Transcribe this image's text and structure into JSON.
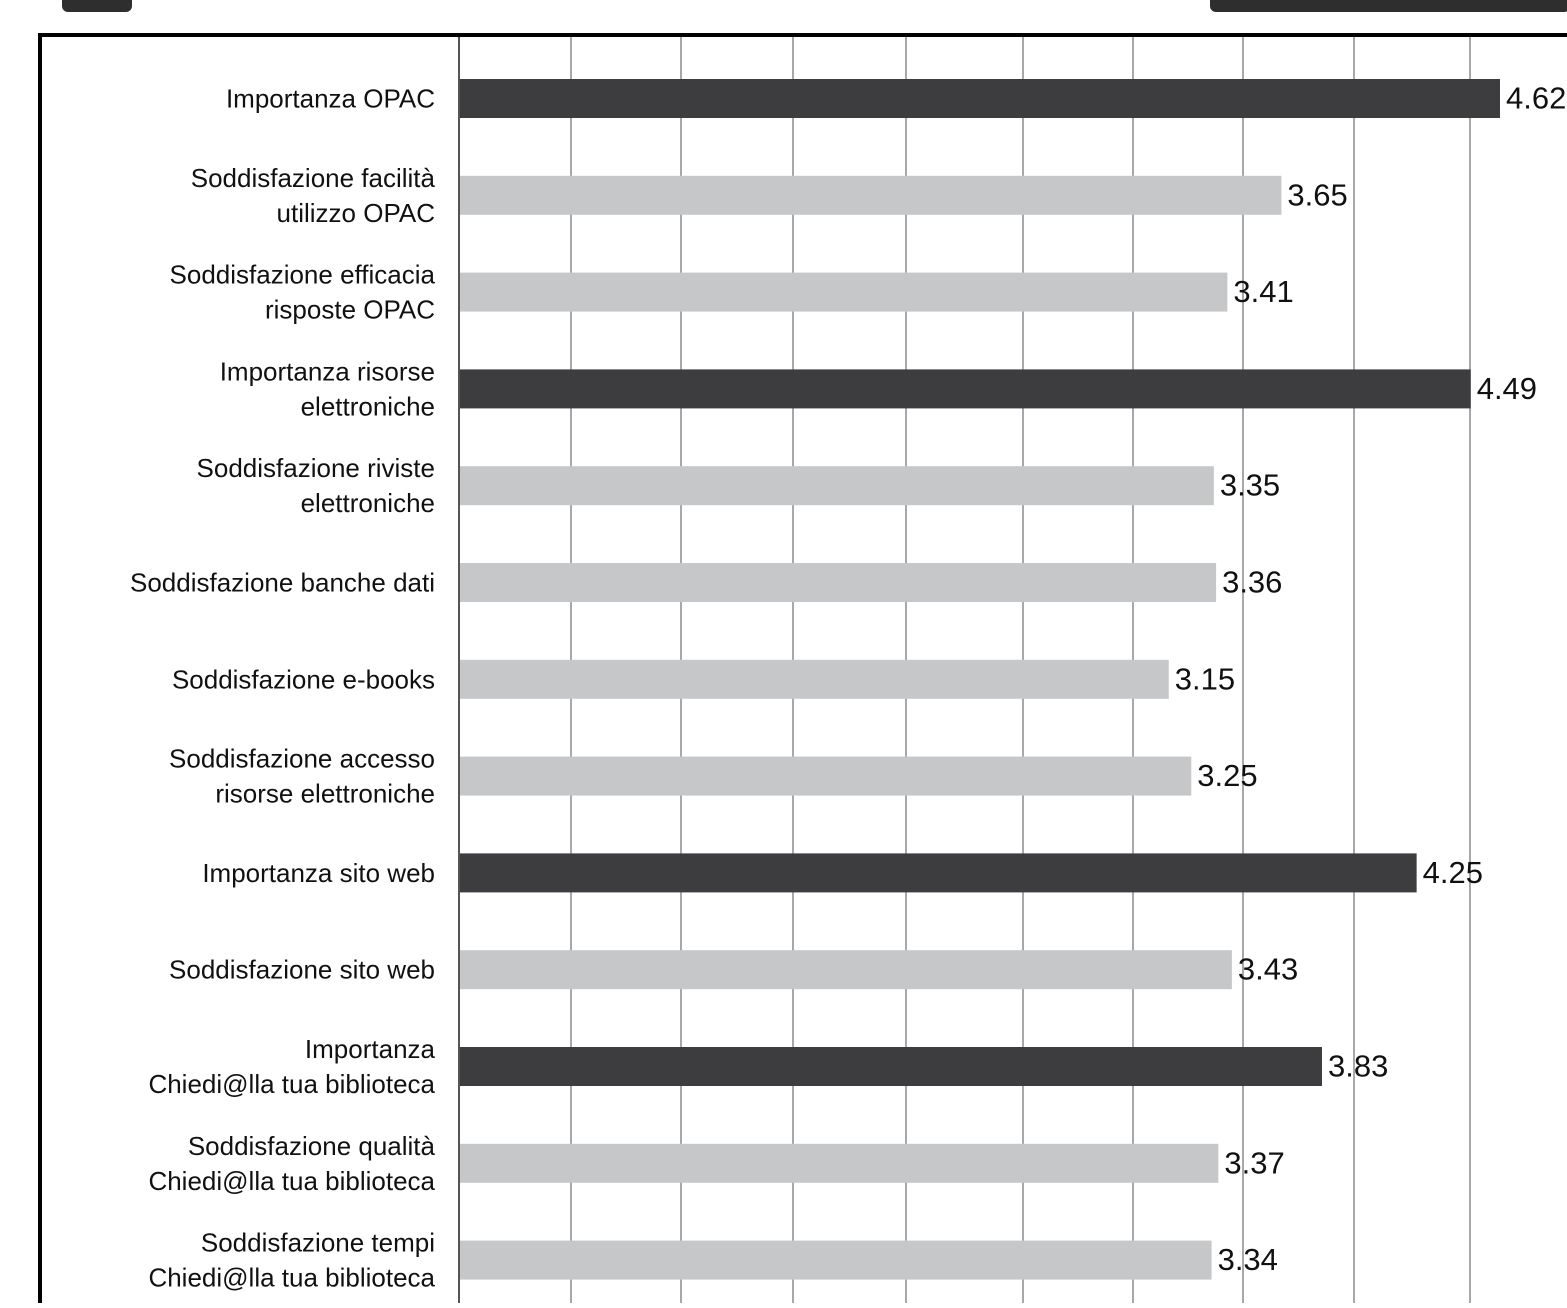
{
  "chart_data": {
    "type": "bar",
    "orientation": "horizontal",
    "categories": [
      "Importanza OPAC",
      "Soddisfazione facilità utilizzo OPAC",
      "Soddisfazione efficacia risposte OPAC",
      "Importanza risorse elettroniche",
      "Soddisfazione riviste elettroniche",
      "Soddisfazione banche dati",
      "Soddisfazione e-books",
      "Soddisfazione accesso risorse elettroniche",
      "Importanza sito web",
      "Soddisfazione sito web",
      "Importanza Chiedi@lla tua biblioteca",
      "Soddisfazione qualità Chiedi@lla tua biblioteca",
      "Soddisfazione tempi Chiedi@lla tua biblioteca"
    ],
    "category_lines": [
      [
        "Importanza OPAC"
      ],
      [
        "Soddisfazione facilità",
        "utilizzo OPAC"
      ],
      [
        "Soddisfazione efficacia",
        "risposte OPAC"
      ],
      [
        "Importanza risorse",
        "elettroniche"
      ],
      [
        "Soddisfazione riviste",
        "elettroniche"
      ],
      [
        "Soddisfazione banche dati"
      ],
      [
        "Soddisfazione e-books"
      ],
      [
        "Soddisfazione accesso",
        "risorse elettroniche"
      ],
      [
        "Importanza sito web"
      ],
      [
        "Soddisfazione sito web"
      ],
      [
        "Importanza",
        "Chiedi@lla tua biblioteca"
      ],
      [
        "Soddisfazione qualità",
        "Chiedi@lla tua biblioteca"
      ],
      [
        "Soddisfazione tempi",
        "Chiedi@lla tua biblioteca"
      ]
    ],
    "values": [
      4.62,
      3.65,
      3.41,
      4.49,
      3.35,
      3.36,
      3.15,
      3.25,
      4.25,
      3.43,
      3.83,
      3.37,
      3.34
    ],
    "value_labels": [
      "4.62",
      "3.65",
      "3.41",
      "4.49",
      "3.35",
      "3.36",
      "3.15",
      "3.25",
      "4.25",
      "3.43",
      "3.83",
      "3.37",
      "3.34"
    ],
    "bar_kind": [
      "importanza",
      "soddisfazione",
      "soddisfazione",
      "importanza",
      "soddisfazione",
      "soddisfazione",
      "soddisfazione",
      "soddisfazione",
      "importanza",
      "soddisfazione",
      "importanza",
      "soddisfazione",
      "soddisfazione"
    ],
    "colors": {
      "importanza": "#3d3d3f",
      "soddisfazione": "#c6c7c8",
      "grid": "#8c8c8c",
      "frame": "#000000",
      "text": "#111111"
    },
    "xlim": [
      0,
      4.62
    ],
    "grid": true,
    "title": "",
    "xlabel": "",
    "ylabel": ""
  }
}
